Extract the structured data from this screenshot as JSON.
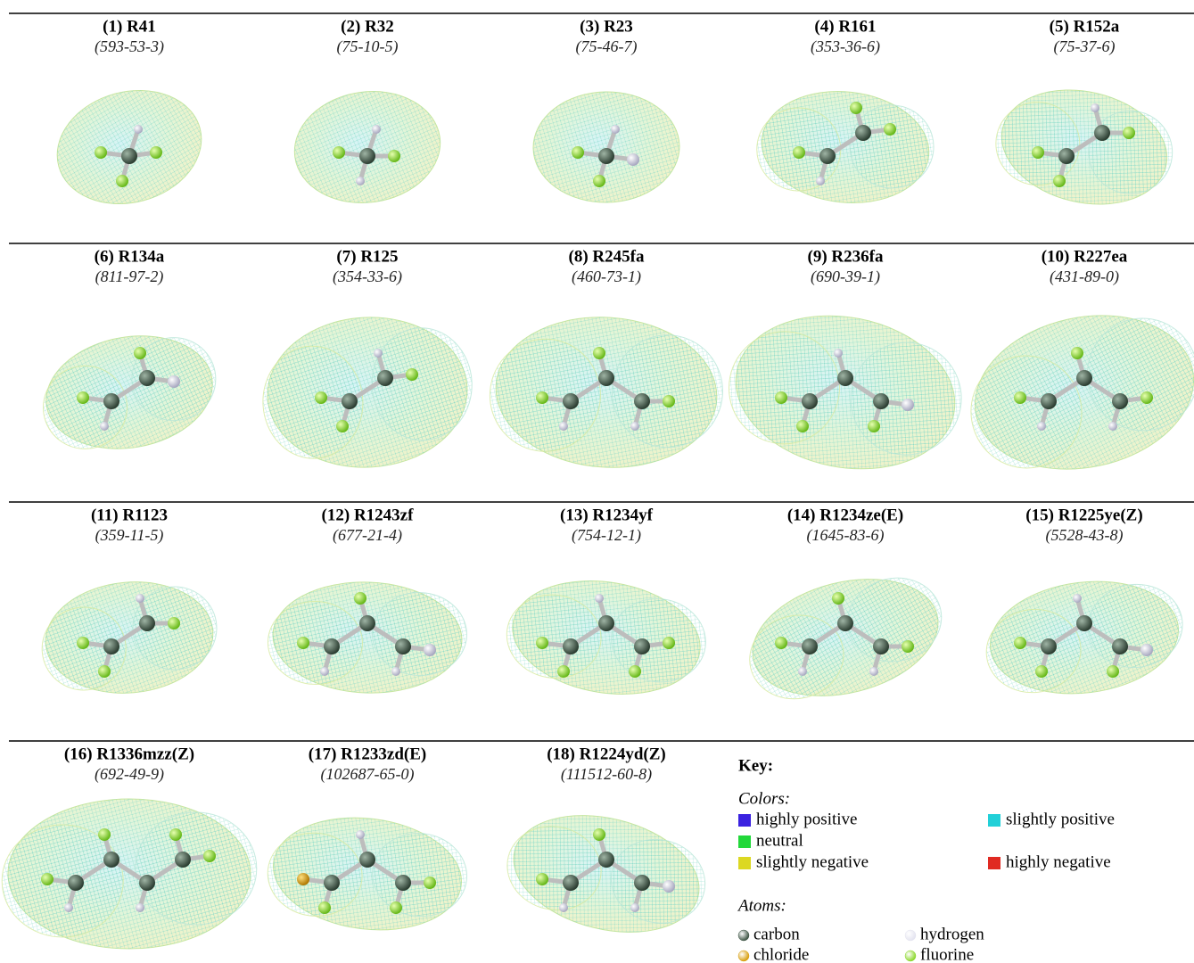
{
  "molecules": [
    {
      "label": "(1) R41",
      "cas": "(593-53-3)"
    },
    {
      "label": "(2) R32",
      "cas": "(75-10-5)"
    },
    {
      "label": "(3) R23",
      "cas": "(75-46-7)"
    },
    {
      "label": "(4) R161",
      "cas": "(353-36-6)"
    },
    {
      "label": "(5) R152a",
      "cas": "(75-37-6)"
    },
    {
      "label": "(6) R134a",
      "cas": "(811-97-2)"
    },
    {
      "label": "(7) R125",
      "cas": "(354-33-6)"
    },
    {
      "label": "(8) R245fa",
      "cas": "(460-73-1)"
    },
    {
      "label": "(9) R236fa",
      "cas": "(690-39-1)"
    },
    {
      "label": "(10) R227ea",
      "cas": "(431-89-0)"
    },
    {
      "label": "(11) R1123",
      "cas": "(359-11-5)"
    },
    {
      "label": "(12) R1243zf",
      "cas": "(677-21-4)"
    },
    {
      "label": "(13) R1234yf",
      "cas": "(754-12-1)"
    },
    {
      "label": "(14) R1234ze(E)",
      "cas": "(1645-83-6)"
    },
    {
      "label": "(15) R1225ye(Z)",
      "cas": "(5528-43-8)"
    },
    {
      "label": "(16) R1336mzz(Z)",
      "cas": "(692-49-9)"
    },
    {
      "label": "(17) R1233zd(E)",
      "cas": "(102687-65-0)"
    },
    {
      "label": "(18) R1224yd(Z)",
      "cas": "(111512-60-8)"
    }
  ],
  "key": {
    "title": "Key:",
    "colors_heading": "Colors:",
    "colors": [
      {
        "name": "highly positive",
        "color": "#3a22e0"
      },
      {
        "name": "slightly positive",
        "color": "#22d0d8"
      },
      {
        "name": "neutral",
        "color": "#22d83a"
      },
      {
        "name": "slightly negative",
        "color": "#dcd822"
      },
      {
        "name": "highly negative",
        "color": "#e02a22"
      }
    ],
    "atoms_heading": "Atoms:",
    "atoms": [
      {
        "name": "carbon",
        "color": "#3f5646"
      },
      {
        "name": "hydrogen",
        "color": "#e4e4f0"
      },
      {
        "name": "chloride",
        "color": "#d8a010"
      },
      {
        "name": "fluorine",
        "color": "#8ed830"
      }
    ]
  }
}
